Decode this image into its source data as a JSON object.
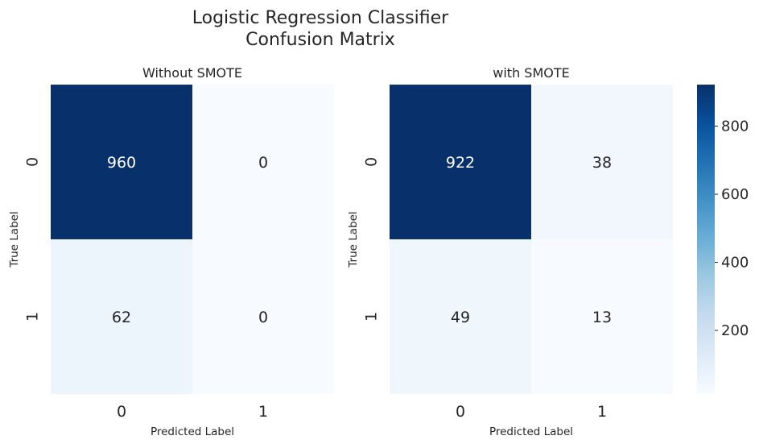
{
  "title_line1": "Logistic Regression Classifier",
  "title_line2": "Confusion Matrix",
  "colorbar": {
    "ticks": [
      200,
      400,
      600,
      800
    ],
    "vmin": 13,
    "vmax": 922,
    "colormap": "Blues",
    "colors": [
      "#f7fbff",
      "#deebf7",
      "#c6dbef",
      "#9ecae1",
      "#6baed6",
      "#4292c6",
      "#2171b5",
      "#08519c",
      "#08306b"
    ]
  },
  "chart_data": [
    {
      "type": "heatmap",
      "title": "Without SMOTE",
      "xlabel": "Predicted Label",
      "ylabel": "True Label",
      "x_categories": [
        "0",
        "1"
      ],
      "y_categories": [
        "0",
        "1"
      ],
      "values": [
        [
          960,
          0
        ],
        [
          62,
          0
        ]
      ]
    },
    {
      "type": "heatmap",
      "title": "with SMOTE",
      "xlabel": "Predicted Label",
      "ylabel": "True Label",
      "x_categories": [
        "0",
        "1"
      ],
      "y_categories": [
        "0",
        "1"
      ],
      "values": [
        [
          922,
          38
        ],
        [
          49,
          13
        ]
      ]
    }
  ]
}
